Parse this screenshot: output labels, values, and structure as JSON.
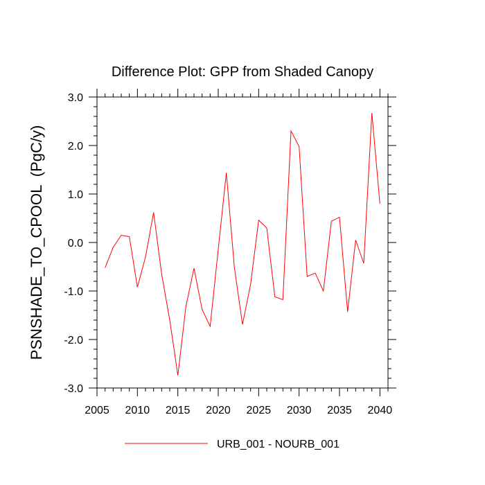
{
  "chart_data": {
    "type": "line",
    "title": "Difference Plot: GPP from Shaded Canopy",
    "xlabel": "",
    "ylabel": "PSNSHADE_TO_CPOOL  (PgC/y)",
    "xlim": [
      2005,
      2041
    ],
    "ylim": [
      -3.0,
      3.0
    ],
    "x_ticks": [
      2005,
      2010,
      2015,
      2020,
      2025,
      2030,
      2035,
      2040
    ],
    "y_ticks": [
      -3.0,
      -2.0,
      -1.0,
      0.0,
      1.0,
      2.0,
      3.0
    ],
    "y_tick_labels": [
      "-3.0",
      "-2.0",
      "-1.0",
      "0.0",
      "1.0",
      "2.0",
      "3.0"
    ],
    "grid": false,
    "legend_position": "bottom",
    "series": [
      {
        "name": "URB_001 - NOURB_001",
        "color": "#ff0000",
        "x": [
          2006,
          2007,
          2008,
          2009,
          2010,
          2011,
          2012,
          2013,
          2014,
          2015,
          2016,
          2017,
          2018,
          2019,
          2020,
          2021,
          2022,
          2023,
          2024,
          2025,
          2026,
          2027,
          2028,
          2029,
          2030,
          2031,
          2032,
          2033,
          2034,
          2035,
          2036,
          2037,
          2038,
          2039,
          2040
        ],
        "values": [
          -0.52,
          -0.1,
          0.15,
          0.12,
          -0.92,
          -0.3,
          0.62,
          -0.65,
          -1.6,
          -2.74,
          -1.32,
          -0.53,
          -1.38,
          -1.73,
          -0.14,
          1.44,
          -0.52,
          -1.69,
          -0.86,
          0.46,
          0.3,
          -1.12,
          -1.18,
          2.3,
          1.98,
          -0.7,
          -0.63,
          -1.0,
          0.44,
          0.52,
          -1.43,
          0.05,
          -0.43,
          2.67,
          0.8
        ]
      }
    ]
  }
}
